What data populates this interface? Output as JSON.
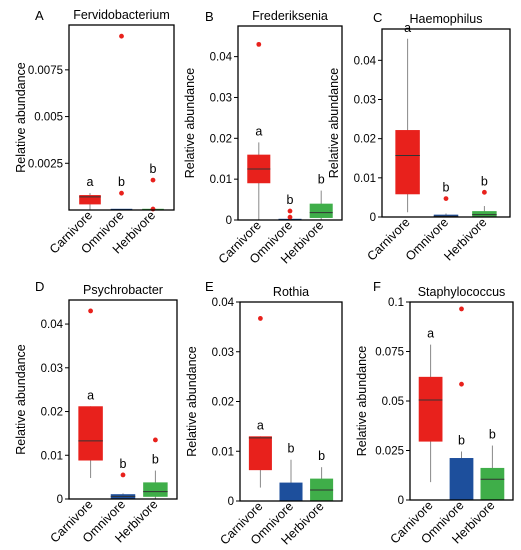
{
  "figure": {
    "box_colors": {
      "Carnivore": "#e8211c",
      "Omnivore": "#1d4f9c",
      "Herbivore": "#3fae49"
    },
    "outlier_color": "#e8211c",
    "whisker_color": "#888888"
  },
  "chart_data": [
    {
      "panel": "A",
      "type": "box",
      "title": "Fervidobacterium",
      "ylabel": "Relative abundance",
      "ylim": [
        0,
        0.0099
      ],
      "yticks": [
        0.0025,
        0.005,
        0.0075
      ],
      "ytick_labels": [
        "0.0025",
        "0.005",
        "0.0075"
      ],
      "categories": [
        "Carnivore",
        "Omnivore",
        "Herbivore"
      ],
      "boxes": [
        {
          "name": "Carnivore",
          "q1": 0.0003,
          "median": 0.0007,
          "q3": 0.0008,
          "low": 0.0,
          "high": 0.0009,
          "outliers": [],
          "letter": "a"
        },
        {
          "name": "Omnivore",
          "q1": 0.0,
          "median": 0.0,
          "q3": 0.0,
          "low": 0.0,
          "high": 0.0,
          "outliers": [
            0.0093,
            0.0009
          ],
          "letter": "b"
        },
        {
          "name": "Herbivore",
          "q1": 0.0,
          "median": 0.0,
          "q3": 0.0,
          "low": 0.0,
          "high": 0.0,
          "outliers": [
            0.0016,
            5e-05
          ],
          "letter": "b"
        }
      ]
    },
    {
      "panel": "B",
      "type": "box",
      "title": "Frederiksenia",
      "ylabel": "Relative abundance",
      "ylim": [
        0,
        0.0475
      ],
      "yticks": [
        0,
        0.01,
        0.02,
        0.03,
        0.04
      ],
      "ytick_labels": [
        "0",
        "0.01",
        "0.02",
        "0.03",
        "0.04"
      ],
      "categories": [
        "Carnivore",
        "Omnivore",
        "Herbivore"
      ],
      "boxes": [
        {
          "name": "Carnivore",
          "q1": 0.009,
          "median": 0.0125,
          "q3": 0.016,
          "low": 0.0,
          "high": 0.019,
          "outliers": [
            0.043
          ],
          "letter": "a"
        },
        {
          "name": "Omnivore",
          "q1": 0.0,
          "median": 0.0,
          "q3": 0.0,
          "low": 0.0,
          "high": 0.0,
          "outliers": [
            0.0022,
            0.0007
          ],
          "letter": "b"
        },
        {
          "name": "Herbivore",
          "q1": 0.0005,
          "median": 0.0018,
          "q3": 0.004,
          "low": 0.0,
          "high": 0.0072,
          "outliers": [],
          "letter": "b"
        }
      ]
    },
    {
      "panel": "C",
      "type": "box",
      "title": "Haemophilus",
      "ylabel": "Relative abundance",
      "ylim": [
        0,
        0.048
      ],
      "yticks": [
        0,
        0.01,
        0.02,
        0.03,
        0.04
      ],
      "ytick_labels": [
        "0",
        "0.01",
        "0.02",
        "0.03",
        "0.04"
      ],
      "categories": [
        "Carnivore",
        "Omnivore",
        "Herbivore"
      ],
      "boxes": [
        {
          "name": "Carnivore",
          "q1": 0.0058,
          "median": 0.0157,
          "q3": 0.0222,
          "low": 0.0012,
          "high": 0.0455,
          "outliers": [],
          "letter": "a"
        },
        {
          "name": "Omnivore",
          "q1": 0.0001,
          "median": 0.0002,
          "q3": 0.0006,
          "low": 0.0,
          "high": 0.0009,
          "outliers": [
            0.0047
          ],
          "letter": "b"
        },
        {
          "name": "Herbivore",
          "q1": 0.0,
          "median": 0.0006,
          "q3": 0.0015,
          "low": 0.0,
          "high": 0.0028,
          "outliers": [
            0.0063
          ],
          "letter": "b"
        }
      ]
    },
    {
      "panel": "D",
      "type": "box",
      "title": "Psychrobacter",
      "ylabel": "Relative abundance",
      "ylim": [
        0,
        0.0455
      ],
      "yticks": [
        0,
        0.01,
        0.02,
        0.03,
        0.04
      ],
      "ytick_labels": [
        "0",
        "0.01",
        "0.02",
        "0.03",
        "0.04"
      ],
      "categories": [
        "Carnivore",
        "Omnivore",
        "Herbivore"
      ],
      "boxes": [
        {
          "name": "Carnivore",
          "q1": 0.0088,
          "median": 0.0133,
          "q3": 0.0212,
          "low": 0.0048,
          "high": 0.0212,
          "outliers": [
            0.043
          ],
          "letter": "a"
        },
        {
          "name": "Omnivore",
          "q1": 0.0,
          "median": 0.0006,
          "q3": 0.0011,
          "low": 0.0,
          "high": 0.0013,
          "outliers": [
            0.0055
          ],
          "letter": "b"
        },
        {
          "name": "Herbivore",
          "q1": 0.0005,
          "median": 0.0017,
          "q3": 0.0038,
          "low": 0.0,
          "high": 0.0065,
          "outliers": [
            0.0135
          ],
          "letter": "b"
        }
      ]
    },
    {
      "panel": "E",
      "type": "box",
      "title": "Rothia",
      "ylabel": "Relative abundance",
      "ylim": [
        0,
        0.04
      ],
      "yticks": [
        0,
        0.01,
        0.02,
        0.03,
        0.04
      ],
      "ytick_labels": [
        "0",
        "0.01",
        "0.02",
        "0.03",
        "0.04"
      ],
      "categories": [
        "Carnivore",
        "Omnivore",
        "Herbivore"
      ],
      "boxes": [
        {
          "name": "Carnivore",
          "q1": 0.0062,
          "median": 0.0127,
          "q3": 0.013,
          "low": 0.0027,
          "high": 0.013,
          "outliers": [
            0.0367
          ],
          "letter": "a"
        },
        {
          "name": "Omnivore",
          "q1": 0.0,
          "median": 0.0,
          "q3": 0.0037,
          "low": 0.0,
          "high": 0.0083,
          "outliers": [],
          "letter": "b"
        },
        {
          "name": "Herbivore",
          "q1": 0.0,
          "median": 0.0022,
          "q3": 0.0045,
          "low": 0.0,
          "high": 0.0068,
          "outliers": [],
          "letter": "b"
        }
      ]
    },
    {
      "panel": "F",
      "type": "box",
      "title": "Staphylococcus",
      "ylabel": "Relative abundance",
      "ylim": [
        0,
        0.1
      ],
      "yticks": [
        0,
        0.025,
        0.05,
        0.075,
        0.1
      ],
      "ytick_labels": [
        "0",
        "0.025",
        "0.05",
        "0.075",
        "0.1"
      ],
      "categories": [
        "Carnivore",
        "Omnivore",
        "Herbivore"
      ],
      "boxes": [
        {
          "name": "Carnivore",
          "q1": 0.0295,
          "median": 0.0505,
          "q3": 0.0622,
          "low": 0.009,
          "high": 0.0785,
          "outliers": [],
          "letter": "a"
        },
        {
          "name": "Omnivore",
          "q1": 0.0,
          "median": 0.0,
          "q3": 0.0212,
          "low": 0.0,
          "high": 0.0245,
          "outliers": [
            0.0965,
            0.0585
          ],
          "letter": "b"
        },
        {
          "name": "Herbivore",
          "q1": 0.0,
          "median": 0.0105,
          "q3": 0.0162,
          "low": 0.0,
          "high": 0.0275,
          "outliers": [],
          "letter": "b"
        }
      ]
    }
  ]
}
